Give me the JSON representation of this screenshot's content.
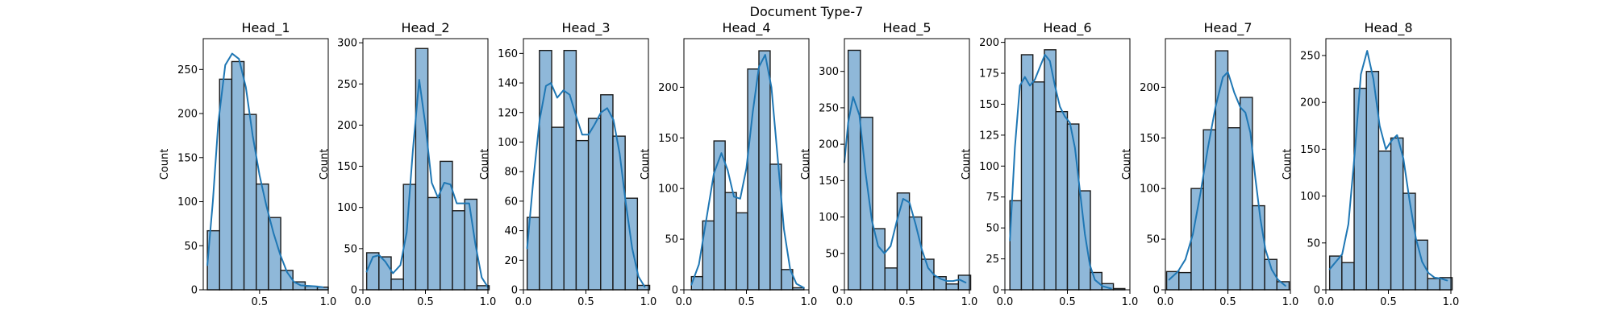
{
  "figure": {
    "title": "Document Type-7"
  },
  "style": {
    "bar_fill": "#8fb8d9",
    "bar_stroke": "#1a1a1a",
    "kde_color": "#1f77b4"
  },
  "chart_data": [
    {
      "type": "bar",
      "title": "Head_1",
      "xlabel": "",
      "ylabel": "Count",
      "xlim": [
        0.09,
        1.0
      ],
      "ylim": [
        0,
        285
      ],
      "xticks": [
        0.5,
        1.0
      ],
      "xtick_labels": [
        "0.5",
        "1.0"
      ],
      "yticks": [
        0,
        50,
        100,
        150,
        200,
        250
      ],
      "bin_edges": [
        0.12,
        0.209,
        0.298,
        0.387,
        0.476,
        0.565,
        0.654,
        0.743,
        0.832,
        0.921,
        1.0
      ],
      "values": [
        67,
        239,
        259,
        199,
        120,
        82,
        22,
        9,
        4,
        3
      ],
      "kde": [
        [
          0.12,
          28
        ],
        [
          0.16,
          100
        ],
        [
          0.2,
          190
        ],
        [
          0.25,
          255
        ],
        [
          0.3,
          268
        ],
        [
          0.35,
          262
        ],
        [
          0.4,
          230
        ],
        [
          0.45,
          175
        ],
        [
          0.5,
          130
        ],
        [
          0.55,
          95
        ],
        [
          0.6,
          65
        ],
        [
          0.65,
          40
        ],
        [
          0.7,
          20
        ],
        [
          0.75,
          9
        ],
        [
          0.8,
          5
        ],
        [
          0.9,
          4
        ],
        [
          0.96,
          3
        ]
      ]
    },
    {
      "type": "bar",
      "title": "Head_2",
      "xlabel": "",
      "ylabel": "Count",
      "xlim": [
        0.0,
        1.0
      ],
      "ylim": [
        0,
        305
      ],
      "xticks": [
        0.0,
        0.5,
        1.0
      ],
      "xtick_labels": [
        "0.0",
        "0.5",
        "1.0"
      ],
      "yticks": [
        0,
        50,
        100,
        150,
        200,
        250,
        300
      ],
      "bin_edges": [
        0.03,
        0.128,
        0.226,
        0.324,
        0.422,
        0.52,
        0.618,
        0.716,
        0.814,
        0.912,
        1.01
      ],
      "values": [
        45,
        40,
        13,
        128,
        293,
        112,
        156,
        96,
        110,
        5
      ],
      "kde": [
        [
          0.03,
          22
        ],
        [
          0.08,
          40
        ],
        [
          0.13,
          42
        ],
        [
          0.18,
          34
        ],
        [
          0.24,
          20
        ],
        [
          0.3,
          30
        ],
        [
          0.35,
          70
        ],
        [
          0.4,
          170
        ],
        [
          0.45,
          255
        ],
        [
          0.5,
          200
        ],
        [
          0.55,
          130
        ],
        [
          0.6,
          112
        ],
        [
          0.65,
          130
        ],
        [
          0.7,
          128
        ],
        [
          0.75,
          105
        ],
        [
          0.8,
          105
        ],
        [
          0.85,
          105
        ],
        [
          0.9,
          55
        ],
        [
          0.95,
          15
        ],
        [
          1.0,
          3
        ]
      ]
    },
    {
      "type": "bar",
      "title": "Head_3",
      "xlabel": "",
      "ylabel": "Count",
      "xlim": [
        0.0,
        1.0
      ],
      "ylim": [
        0,
        170
      ],
      "xticks": [
        0.0,
        0.5,
        1.0
      ],
      "xtick_labels": [
        "0.0",
        "0.5",
        "1.0"
      ],
      "yticks": [
        0,
        20,
        40,
        60,
        80,
        100,
        120,
        140,
        160
      ],
      "bin_edges": [
        0.03,
        0.128,
        0.226,
        0.324,
        0.422,
        0.52,
        0.618,
        0.716,
        0.814,
        0.912,
        1.01
      ],
      "values": [
        49,
        162,
        110,
        162,
        101,
        116,
        132,
        104,
        62,
        3
      ],
      "kde": [
        [
          0.03,
          28
        ],
        [
          0.08,
          75
        ],
        [
          0.13,
          115
        ],
        [
          0.18,
          138
        ],
        [
          0.22,
          140
        ],
        [
          0.27,
          130
        ],
        [
          0.32,
          135
        ],
        [
          0.37,
          132
        ],
        [
          0.42,
          118
        ],
        [
          0.47,
          105
        ],
        [
          0.52,
          105
        ],
        [
          0.57,
          112
        ],
        [
          0.62,
          120
        ],
        [
          0.67,
          123
        ],
        [
          0.72,
          115
        ],
        [
          0.77,
          92
        ],
        [
          0.82,
          58
        ],
        [
          0.87,
          28
        ],
        [
          0.92,
          9
        ],
        [
          0.97,
          2
        ]
      ]
    },
    {
      "type": "bar",
      "title": "Head_4",
      "xlabel": "",
      "ylabel": "Count",
      "xlim": [
        0.0,
        1.0
      ],
      "ylim": [
        0,
        248
      ],
      "xticks": [
        0.0,
        0.5,
        1.0
      ],
      "xtick_labels": [
        "0.0",
        "0.5",
        "1.0"
      ],
      "yticks": [
        0,
        50,
        100,
        150,
        200
      ],
      "bin_edges": [
        0.06,
        0.15,
        0.24,
        0.33,
        0.42,
        0.51,
        0.6,
        0.69,
        0.78,
        0.87,
        0.96
      ],
      "values": [
        13,
        68,
        147,
        96,
        76,
        218,
        236,
        124,
        20,
        2
      ],
      "kde": [
        [
          0.06,
          5
        ],
        [
          0.12,
          25
        ],
        [
          0.18,
          70
        ],
        [
          0.24,
          115
        ],
        [
          0.3,
          135
        ],
        [
          0.35,
          118
        ],
        [
          0.4,
          92
        ],
        [
          0.45,
          90
        ],
        [
          0.5,
          120
        ],
        [
          0.55,
          175
        ],
        [
          0.6,
          220
        ],
        [
          0.65,
          232
        ],
        [
          0.7,
          200
        ],
        [
          0.75,
          130
        ],
        [
          0.8,
          60
        ],
        [
          0.85,
          20
        ],
        [
          0.9,
          6
        ],
        [
          0.96,
          2
        ]
      ]
    },
    {
      "type": "bar",
      "title": "Head_5",
      "xlabel": "",
      "ylabel": "Count",
      "xlim": [
        0.0,
        1.0
      ],
      "ylim": [
        0,
        345
      ],
      "xticks": [
        0.0,
        0.5,
        1.0
      ],
      "xtick_labels": [
        "0.0",
        "0.5",
        "1.0"
      ],
      "yticks": [
        0,
        50,
        100,
        150,
        200,
        250,
        300
      ],
      "bin_edges": [
        0.03,
        0.128,
        0.226,
        0.324,
        0.422,
        0.52,
        0.618,
        0.716,
        0.814,
        0.912,
        1.01
      ],
      "values": [
        329,
        237,
        84,
        30,
        133,
        100,
        42,
        18,
        8,
        20
      ],
      "kde": [
        [
          0.0,
          175
        ],
        [
          0.03,
          230
        ],
        [
          0.07,
          265
        ],
        [
          0.12,
          240
        ],
        [
          0.17,
          160
        ],
        [
          0.22,
          95
        ],
        [
          0.27,
          60
        ],
        [
          0.32,
          50
        ],
        [
          0.37,
          60
        ],
        [
          0.42,
          95
        ],
        [
          0.47,
          125
        ],
        [
          0.52,
          120
        ],
        [
          0.57,
          90
        ],
        [
          0.62,
          55
        ],
        [
          0.67,
          30
        ],
        [
          0.72,
          20
        ],
        [
          0.77,
          15
        ],
        [
          0.82,
          12
        ],
        [
          0.87,
          12
        ],
        [
          0.92,
          14
        ],
        [
          0.97,
          10
        ]
      ]
    },
    {
      "type": "bar",
      "title": "Head_6",
      "xlabel": "",
      "ylabel": "Count",
      "xlim": [
        0.0,
        1.0
      ],
      "ylim": [
        0,
        203
      ],
      "xticks": [
        0.0,
        0.5,
        1.0
      ],
      "xtick_labels": [
        "0.0",
        "0.5",
        "1.0"
      ],
      "yticks": [
        0,
        25,
        50,
        75,
        100,
        125,
        150,
        175,
        200
      ],
      "bin_edges": [
        0.04,
        0.132,
        0.224,
        0.316,
        0.408,
        0.5,
        0.592,
        0.684,
        0.776,
        0.868,
        0.96
      ],
      "values": [
        72,
        190,
        168,
        194,
        144,
        134,
        80,
        14,
        5,
        1
      ],
      "kde": [
        [
          0.04,
          40
        ],
        [
          0.08,
          115
        ],
        [
          0.12,
          165
        ],
        [
          0.16,
          172
        ],
        [
          0.2,
          165
        ],
        [
          0.24,
          170
        ],
        [
          0.28,
          180
        ],
        [
          0.32,
          190
        ],
        [
          0.36,
          185
        ],
        [
          0.4,
          165
        ],
        [
          0.44,
          148
        ],
        [
          0.48,
          140
        ],
        [
          0.52,
          135
        ],
        [
          0.56,
          115
        ],
        [
          0.6,
          80
        ],
        [
          0.64,
          45
        ],
        [
          0.68,
          20
        ],
        [
          0.72,
          8
        ],
        [
          0.78,
          3
        ],
        [
          0.85,
          1
        ]
      ]
    },
    {
      "type": "bar",
      "title": "Head_7",
      "xlabel": "",
      "ylabel": "Count",
      "xlim": [
        0.0,
        1.0
      ],
      "ylim": [
        0,
        248
      ],
      "xticks": [
        0.0,
        0.5,
        1.0
      ],
      "xtick_labels": [
        "0.0",
        "0.5",
        "1.0"
      ],
      "yticks": [
        0,
        50,
        100,
        150,
        200
      ],
      "bin_edges": [
        0.01,
        0.108,
        0.206,
        0.304,
        0.402,
        0.5,
        0.598,
        0.696,
        0.794,
        0.892,
        0.99
      ],
      "values": [
        18,
        17,
        100,
        158,
        236,
        160,
        190,
        83,
        30,
        8
      ],
      "kde": [
        [
          0.03,
          10
        ],
        [
          0.1,
          18
        ],
        [
          0.16,
          30
        ],
        [
          0.22,
          55
        ],
        [
          0.28,
          95
        ],
        [
          0.34,
          140
        ],
        [
          0.4,
          180
        ],
        [
          0.46,
          210
        ],
        [
          0.5,
          215
        ],
        [
          0.55,
          195
        ],
        [
          0.6,
          180
        ],
        [
          0.64,
          175
        ],
        [
          0.68,
          155
        ],
        [
          0.72,
          110
        ],
        [
          0.76,
          70
        ],
        [
          0.8,
          40
        ],
        [
          0.85,
          20
        ],
        [
          0.9,
          10
        ],
        [
          0.96,
          4
        ]
      ]
    },
    {
      "type": "bar",
      "title": "Head_8",
      "xlabel": "",
      "ylabel": "Count",
      "xlim": [
        0.0,
        1.0
      ],
      "ylim": [
        0,
        268
      ],
      "xticks": [
        0.0,
        0.5,
        1.0
      ],
      "xtick_labels": [
        "0.0",
        "0.5",
        "1.0"
      ],
      "yticks": [
        0,
        50,
        100,
        150,
        200,
        250
      ],
      "bin_edges": [
        0.03,
        0.128,
        0.226,
        0.324,
        0.422,
        0.52,
        0.618,
        0.716,
        0.814,
        0.912,
        1.01
      ],
      "values": [
        36,
        29,
        215,
        233,
        148,
        162,
        103,
        53,
        12,
        13
      ],
      "kde": [
        [
          0.03,
          22
        ],
        [
          0.08,
          30
        ],
        [
          0.13,
          38
        ],
        [
          0.18,
          70
        ],
        [
          0.23,
          145
        ],
        [
          0.28,
          230
        ],
        [
          0.33,
          255
        ],
        [
          0.38,
          225
        ],
        [
          0.43,
          175
        ],
        [
          0.48,
          150
        ],
        [
          0.53,
          160
        ],
        [
          0.57,
          165
        ],
        [
          0.62,
          140
        ],
        [
          0.67,
          95
        ],
        [
          0.72,
          55
        ],
        [
          0.77,
          30
        ],
        [
          0.82,
          18
        ],
        [
          0.87,
          13
        ],
        [
          0.92,
          12
        ],
        [
          0.97,
          10
        ]
      ]
    }
  ]
}
